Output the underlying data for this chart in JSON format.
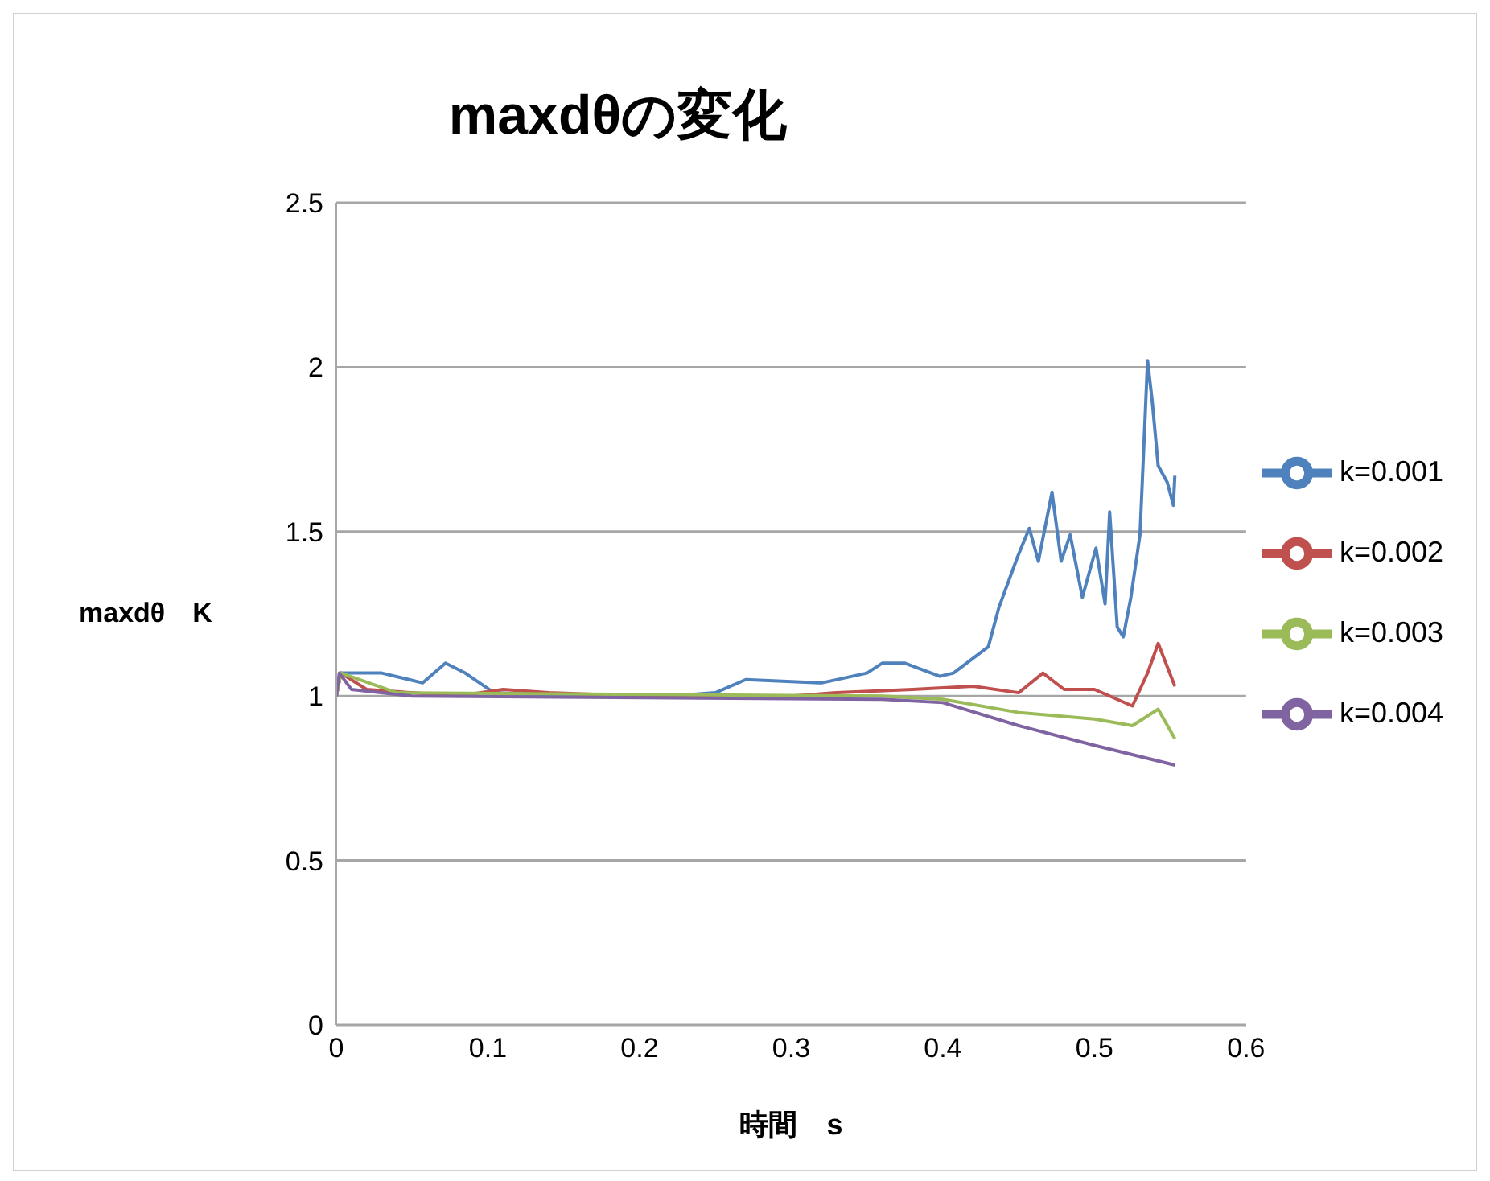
{
  "chart_data": {
    "type": "line",
    "title": "maxdθの変化",
    "xlabel": "時間　s",
    "ylabel": "maxdθ　K",
    "xlim": [
      0,
      0.6
    ],
    "xticks": [
      0,
      0.1,
      0.2,
      0.3,
      0.4,
      0.5,
      0.6
    ],
    "ylim": [
      0,
      2.5
    ],
    "yticks": [
      0,
      0.5,
      1,
      1.5,
      2,
      2.5
    ],
    "grid": "y",
    "legend": "right",
    "marker": "none",
    "line_style": "solid",
    "series": [
      {
        "name": "k=0.001",
        "color": "#4f81bd",
        "x": [
          0,
          0.003,
          0.03,
          0.057,
          0.072,
          0.085,
          0.104,
          0.15,
          0.22,
          0.25,
          0.27,
          0.32,
          0.35,
          0.36,
          0.375,
          0.398,
          0.407,
          0.43,
          0.437,
          0.449,
          0.457,
          0.463,
          0.472,
          0.478,
          0.484,
          0.492,
          0.501,
          0.507,
          0.51,
          0.515,
          0.519,
          0.524,
          0.53,
          0.535,
          0.538,
          0.542,
          0.548,
          0.552,
          0.553
        ],
        "values": [
          1.0,
          1.07,
          1.07,
          1.04,
          1.1,
          1.07,
          1.01,
          1.0,
          1.0,
          1.01,
          1.05,
          1.04,
          1.07,
          1.1,
          1.1,
          1.06,
          1.07,
          1.15,
          1.27,
          1.42,
          1.51,
          1.41,
          1.62,
          1.41,
          1.49,
          1.3,
          1.45,
          1.28,
          1.56,
          1.21,
          1.18,
          1.3,
          1.49,
          2.02,
          1.9,
          1.7,
          1.65,
          1.58,
          1.67
        ]
      },
      {
        "name": "k=0.002",
        "color": "#c0504d",
        "x": [
          0,
          0.003,
          0.02,
          0.05,
          0.08,
          0.11,
          0.14,
          0.2,
          0.3,
          0.33,
          0.38,
          0.42,
          0.45,
          0.466,
          0.48,
          0.5,
          0.525,
          0.535,
          0.542,
          0.553
        ],
        "values": [
          1.0,
          1.07,
          1.02,
          1.01,
          1.0,
          1.02,
          1.01,
          1.0,
          1.0,
          1.01,
          1.02,
          1.03,
          1.01,
          1.07,
          1.02,
          1.02,
          0.97,
          1.07,
          1.16,
          1.03
        ]
      },
      {
        "name": "k=0.003",
        "color": "#9bbb59",
        "x": [
          0,
          0.003,
          0.04,
          0.36,
          0.4,
          0.45,
          0.5,
          0.525,
          0.542,
          0.553
        ],
        "values": [
          1.0,
          1.07,
          1.01,
          1.0,
          0.99,
          0.95,
          0.93,
          0.91,
          0.96,
          0.87
        ]
      },
      {
        "name": "k=0.004",
        "color": "#8064a2",
        "x": [
          0,
          0.002,
          0.01,
          0.05,
          0.36,
          0.4,
          0.45,
          0.5,
          0.553
        ],
        "values": [
          1.0,
          1.07,
          1.02,
          1.0,
          0.99,
          0.98,
          0.91,
          0.85,
          0.79
        ]
      }
    ]
  }
}
